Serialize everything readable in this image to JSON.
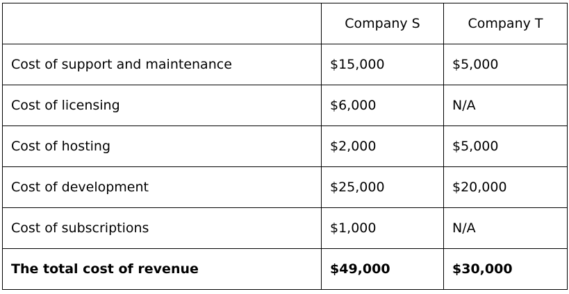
{
  "table": {
    "header": {
      "label": "",
      "company_s": "Company S",
      "company_t": "Company T"
    },
    "rows": [
      {
        "label": "Cost of support and maintenance",
        "company_s": "$15,000",
        "company_t": "$5,000"
      },
      {
        "label": "Cost of licensing",
        "company_s": "$6,000",
        "company_t": "N/A"
      },
      {
        "label": "Cost of hosting",
        "company_s": "$2,000",
        "company_t": "$5,000"
      },
      {
        "label": "Cost of development",
        "company_s": "$25,000",
        "company_t": "$20,000"
      },
      {
        "label": "Cost of subscriptions",
        "company_s": "$1,000",
        "company_t": "N/A"
      }
    ],
    "total": {
      "label": "The total cost of revenue",
      "company_s": "$49,000",
      "company_t": "$30,000"
    }
  }
}
